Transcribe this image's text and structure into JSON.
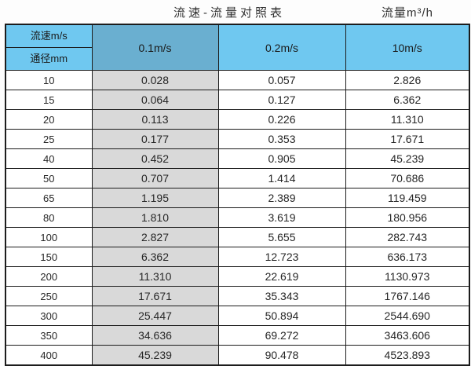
{
  "header": {
    "title": "流速-流量对照表",
    "unit_label": "流量m³/h"
  },
  "table": {
    "corner_top": "流速m/s",
    "corner_bottom": "通径mm",
    "speed_columns": [
      "0.1m/s",
      "0.2m/s",
      "10m/s"
    ],
    "rows": [
      {
        "diameter": "10",
        "values": [
          "0.028",
          "0.057",
          "2.826"
        ]
      },
      {
        "diameter": "15",
        "values": [
          "0.064",
          "0.127",
          "6.362"
        ]
      },
      {
        "diameter": "20",
        "values": [
          "0.113",
          "0.226",
          "11.310"
        ]
      },
      {
        "diameter": "25",
        "values": [
          "0.177",
          "0.353",
          "17.671"
        ]
      },
      {
        "diameter": "40",
        "values": [
          "0.452",
          "0.905",
          "45.239"
        ]
      },
      {
        "diameter": "50",
        "values": [
          "0.707",
          "1.414",
          "70.686"
        ]
      },
      {
        "diameter": "65",
        "values": [
          "1.195",
          "2.389",
          "119.459"
        ]
      },
      {
        "diameter": "80",
        "values": [
          "1.810",
          "3.619",
          "180.956"
        ]
      },
      {
        "diameter": "100",
        "values": [
          "2.827",
          "5.655",
          "282.743"
        ]
      },
      {
        "diameter": "150",
        "values": [
          "6.362",
          "12.723",
          "636.173"
        ]
      },
      {
        "diameter": "200",
        "values": [
          "11.310",
          "22.619",
          "1130.973"
        ]
      },
      {
        "diameter": "250",
        "values": [
          "17.671",
          "35.343",
          "1767.146"
        ]
      },
      {
        "diameter": "300",
        "values": [
          "25.447",
          "50.894",
          "2544.690"
        ]
      },
      {
        "diameter": "350",
        "values": [
          "34.636",
          "69.272",
          "3463.606"
        ]
      },
      {
        "diameter": "400",
        "values": [
          "45.239",
          "90.478",
          "4523.893"
        ]
      }
    ]
  },
  "colors": {
    "header_blue": "#6fc8f0",
    "header_blue_dark": "#6aafd0",
    "col_gray": "#d9d9d9",
    "border": "#1c1c1c"
  },
  "chart_data": {
    "type": "table",
    "title": "流速-流量对照表",
    "unit": "流量m³/h",
    "columns": [
      "通径mm",
      "0.1m/s",
      "0.2m/s",
      "10m/s"
    ],
    "rows": [
      [
        10,
        0.028,
        0.057,
        2.826
      ],
      [
        15,
        0.064,
        0.127,
        6.362
      ],
      [
        20,
        0.113,
        0.226,
        11.31
      ],
      [
        25,
        0.177,
        0.353,
        17.671
      ],
      [
        40,
        0.452,
        0.905,
        45.239
      ],
      [
        50,
        0.707,
        1.414,
        70.686
      ],
      [
        65,
        1.195,
        2.389,
        119.459
      ],
      [
        80,
        1.81,
        3.619,
        180.956
      ],
      [
        100,
        2.827,
        5.655,
        282.743
      ],
      [
        150,
        6.362,
        12.723,
        636.173
      ],
      [
        200,
        11.31,
        22.619,
        1130.973
      ],
      [
        250,
        17.671,
        35.343,
        1767.146
      ],
      [
        300,
        25.447,
        50.894,
        2544.69
      ],
      [
        350,
        34.636,
        69.272,
        3463.606
      ],
      [
        400,
        45.239,
        90.478,
        4523.893
      ]
    ]
  }
}
